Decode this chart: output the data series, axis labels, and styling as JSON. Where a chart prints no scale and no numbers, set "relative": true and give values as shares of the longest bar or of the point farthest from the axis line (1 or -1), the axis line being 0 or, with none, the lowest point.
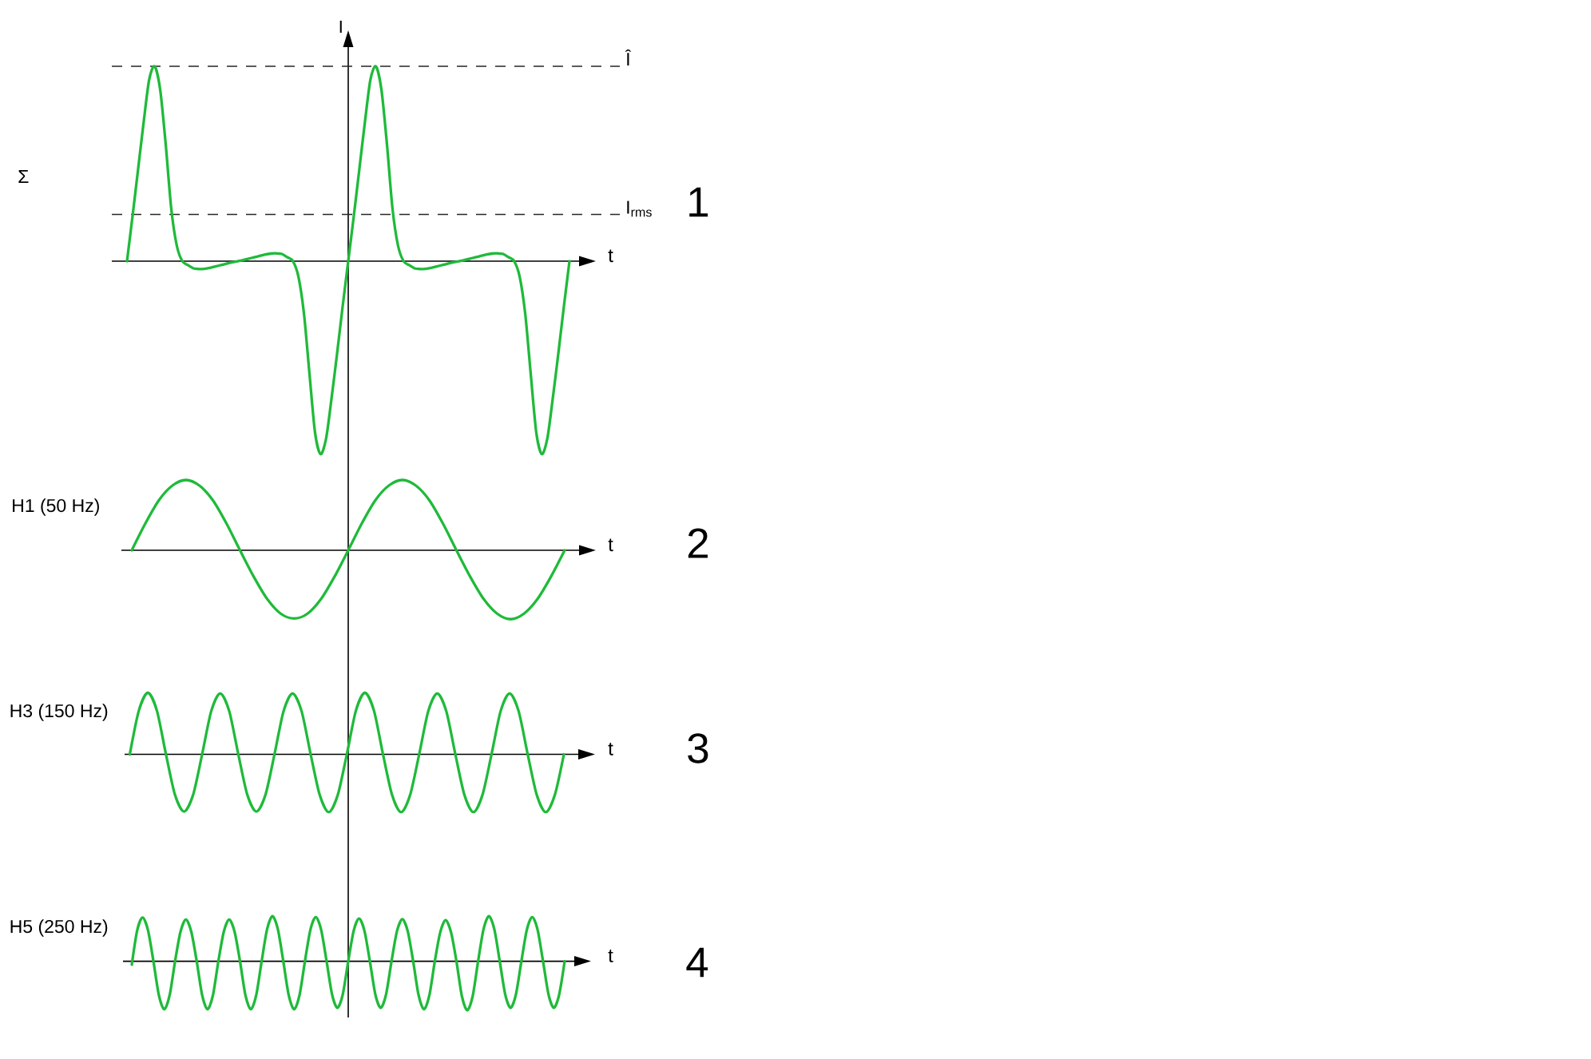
{
  "chart_data": [
    {
      "type": "line",
      "title": "Σ",
      "xlabel": "t",
      "ylabel": "I",
      "relative": true,
      "categories": [
        null,
        null,
        null,
        null,
        null,
        null,
        null,
        null,
        null,
        null,
        null,
        null,
        null,
        null,
        null,
        null,
        null,
        null,
        null,
        null,
        null,
        null,
        null,
        null,
        null,
        null,
        null,
        null,
        null,
        null,
        null,
        null,
        null,
        null,
        null,
        null,
        null,
        null,
        null,
        null,
        null,
        null,
        null,
        null,
        null,
        null,
        null,
        null,
        null,
        null,
        null,
        null,
        null,
        null,
        null,
        null,
        null,
        null,
        null,
        null,
        null,
        null,
        null,
        null,
        null,
        null,
        null,
        null,
        null,
        null,
        null,
        null,
        null,
        null,
        null,
        null,
        null,
        null,
        null,
        null,
        null
      ],
      "color": "#1fba3a",
      "values": [
        0,
        0.23,
        0.47,
        0.71,
        0.93,
        1,
        0.88,
        0.6,
        0.27,
        0.08,
        0,
        -0.02,
        -0.037,
        -0.04,
        -0.039,
        -0.034,
        -0.027,
        -0.02,
        -0.013,
        -0.006,
        0,
        0.006,
        0.013,
        0.02,
        0.027,
        0.034,
        0.039,
        0.04,
        0.037,
        0.02,
        0,
        -0.08,
        -0.27,
        -0.58,
        -0.88,
        -0.99,
        -0.91,
        -0.7,
        -0.47,
        -0.23,
        0,
        0.23,
        0.47,
        0.71,
        0.93,
        1,
        0.88,
        0.6,
        0.27,
        0.08,
        0,
        -0.02,
        -0.037,
        -0.04,
        -0.039,
        -0.034,
        -0.027,
        -0.02,
        -0.013,
        -0.006,
        0,
        0.006,
        0.013,
        0.02,
        0.027,
        0.034,
        0.039,
        0.04,
        0.037,
        0.02,
        0,
        -0.08,
        -0.27,
        -0.58,
        -0.88,
        -0.99,
        -0.91,
        -0.7,
        -0.47,
        -0.23,
        0
      ],
      "ref_lines": [
        {
          "axis": "y",
          "value": 1,
          "label": "Î",
          "line_style": "dashed"
        },
        {
          "axis": "y",
          "value": 0.24,
          "label": "I$_{rms}$",
          "line_style": "dashed"
        }
      ],
      "annotations": [
        "1"
      ]
    },
    {
      "type": "line",
      "title": "H1 (50 Hz)",
      "xlabel": "t",
      "relative": true,
      "categories": [
        null,
        null,
        null,
        null,
        null,
        null,
        null,
        null,
        null,
        null,
        null,
        null,
        null,
        null,
        null,
        null,
        null,
        null,
        null,
        null,
        null,
        null,
        null,
        null,
        null,
        null,
        null,
        null,
        null,
        null,
        null,
        null,
        null
      ],
      "color": "#1fba3a",
      "values": [
        0,
        0.38,
        0.71,
        0.92,
        1,
        0.92,
        0.71,
        0.38,
        0,
        -0.37,
        -0.69,
        -0.9,
        -0.97,
        -0.9,
        -0.69,
        -0.37,
        0,
        0.38,
        0.71,
        0.92,
        1,
        0.92,
        0.71,
        0.38,
        0,
        -0.37,
        -0.69,
        -0.9,
        -0.98,
        -0.9,
        -0.69,
        -0.37,
        0
      ],
      "annotations": [
        "2"
      ]
    },
    {
      "type": "line",
      "title": "H3 (150 Hz)",
      "xlabel": "t",
      "relative": true,
      "categories": [
        null,
        null,
        null,
        null,
        null,
        null,
        null,
        null,
        null,
        null,
        null,
        null,
        null,
        null,
        null,
        null,
        null,
        null,
        null,
        null,
        null,
        null,
        null,
        null,
        null,
        null,
        null,
        null,
        null,
        null,
        null,
        null,
        null,
        null,
        null,
        null,
        null,
        null,
        null,
        null,
        null,
        null,
        null,
        null,
        null,
        null,
        null,
        null,
        null
      ],
      "color": "#1fba3a",
      "values": [
        0,
        0.71,
        1,
        0.71,
        0,
        -0.66,
        -0.93,
        -0.66,
        0,
        0.7,
        0.99,
        0.7,
        0,
        -0.66,
        -0.93,
        -0.66,
        0,
        0.7,
        0.99,
        0.7,
        0,
        -0.66,
        -0.94,
        -0.66,
        0,
        0.71,
        1,
        0.71,
        0,
        -0.66,
        -0.94,
        -0.66,
        0,
        0.7,
        0.99,
        0.7,
        0,
        -0.66,
        -0.94,
        -0.66,
        0,
        0.7,
        0.99,
        0.7,
        0,
        -0.66,
        -0.94,
        -0.66,
        0
      ],
      "annotations": [
        "3"
      ]
    },
    {
      "type": "line",
      "title": "H5 (250 Hz)",
      "xlabel": "t",
      "relative": true,
      "categories": [
        null,
        null,
        null,
        null,
        null,
        null,
        null,
        null,
        null,
        null,
        null,
        null,
        null,
        null,
        null,
        null,
        null,
        null,
        null,
        null,
        null,
        null,
        null,
        null,
        null,
        null,
        null,
        null,
        null,
        null,
        null,
        null,
        null,
        null,
        null,
        null,
        null,
        null,
        null,
        null,
        null,
        null,
        null,
        null,
        null,
        null,
        null,
        null,
        null,
        null,
        null,
        null,
        null,
        null,
        null,
        null,
        null,
        null,
        null,
        null,
        null,
        null,
        null,
        null,
        null,
        null,
        null,
        null,
        null,
        null,
        null,
        null,
        null,
        null,
        null,
        null,
        null,
        null,
        null,
        null,
        null
      ],
      "color": "#1fba3a",
      "values": [
        -0.07,
        0.63,
        0.89,
        0.63,
        0,
        -0.69,
        -0.98,
        -0.69,
        0,
        0.6,
        0.85,
        0.6,
        0,
        -0.69,
        -0.98,
        -0.69,
        0,
        0.6,
        0.85,
        0.6,
        0,
        -0.69,
        -0.98,
        -0.69,
        0,
        0.65,
        0.92,
        0.65,
        0,
        -0.69,
        -0.98,
        -0.69,
        0,
        0.64,
        0.9,
        0.64,
        0,
        -0.67,
        -0.95,
        -0.67,
        0,
        0.62,
        0.87,
        0.62,
        0,
        -0.67,
        -0.95,
        -0.67,
        0,
        0.61,
        0.86,
        0.61,
        0,
        -0.69,
        -0.98,
        -0.69,
        0,
        0.59,
        0.84,
        0.59,
        0,
        -0.71,
        -1,
        -0.71,
        0,
        0.65,
        0.92,
        0.65,
        0,
        -0.67,
        -0.95,
        -0.67,
        0,
        0.64,
        0.9,
        0.64,
        0,
        -0.67,
        -0.95,
        -0.67,
        0
      ],
      "annotations": [
        "4"
      ]
    }
  ]
}
